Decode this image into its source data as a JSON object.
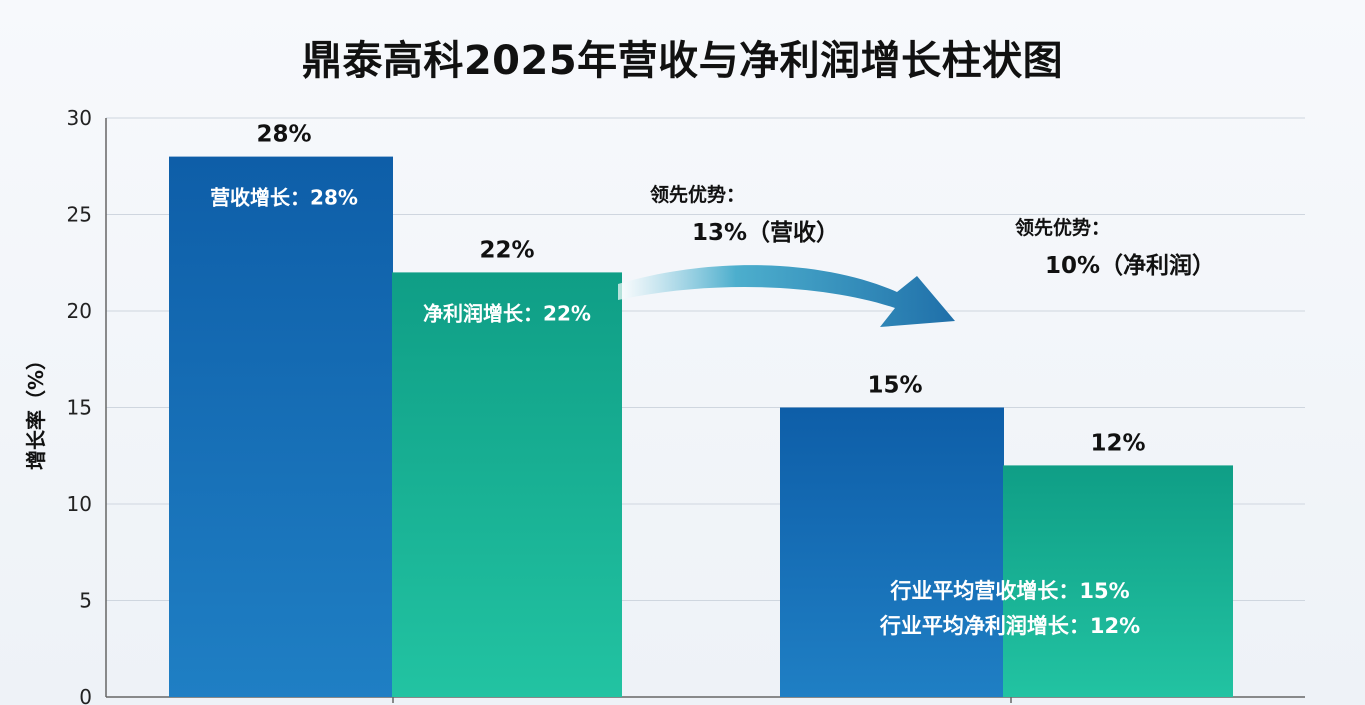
{
  "title": "鼎泰高科2025年营收与净利润增长柱状图",
  "chart_data": {
    "type": "bar",
    "title": "鼎泰高科2025年营收与净利润增长柱状图",
    "ylabel": "增长率（%）",
    "ylim": [
      0,
      30
    ],
    "yticks": [
      0,
      5,
      10,
      15,
      20,
      25,
      30
    ],
    "grid": true,
    "bars": [
      {
        "group": 0,
        "series": "revenue",
        "value": 28,
        "value_label": "28%",
        "inner_label": "营收增长：28%"
      },
      {
        "group": 0,
        "series": "profit",
        "value": 22,
        "value_label": "22%",
        "inner_label": "净利润增长：22%"
      },
      {
        "group": 1,
        "series": "revenue",
        "value": 15,
        "value_label": "15%",
        "inner_label": ""
      },
      {
        "group": 1,
        "series": "profit",
        "value": 12,
        "value_label": "12%",
        "inner_label": ""
      }
    ],
    "colors": {
      "revenue_top": "#0e5ea8",
      "revenue_bottom": "#1f7fc4",
      "profit_top": "#0f9e86",
      "profit_bottom": "#22c3a2",
      "arrow": "#1f6fa9"
    },
    "annotations": [
      {
        "line1": "领先优势：",
        "line2": "13%（营收）"
      },
      {
        "line1": "领先优势：",
        "line2": "10%（净利润）"
      }
    ],
    "industry_labels": [
      "行业平均营收增长：15%",
      "行业平均净利润增长：12%"
    ]
  }
}
